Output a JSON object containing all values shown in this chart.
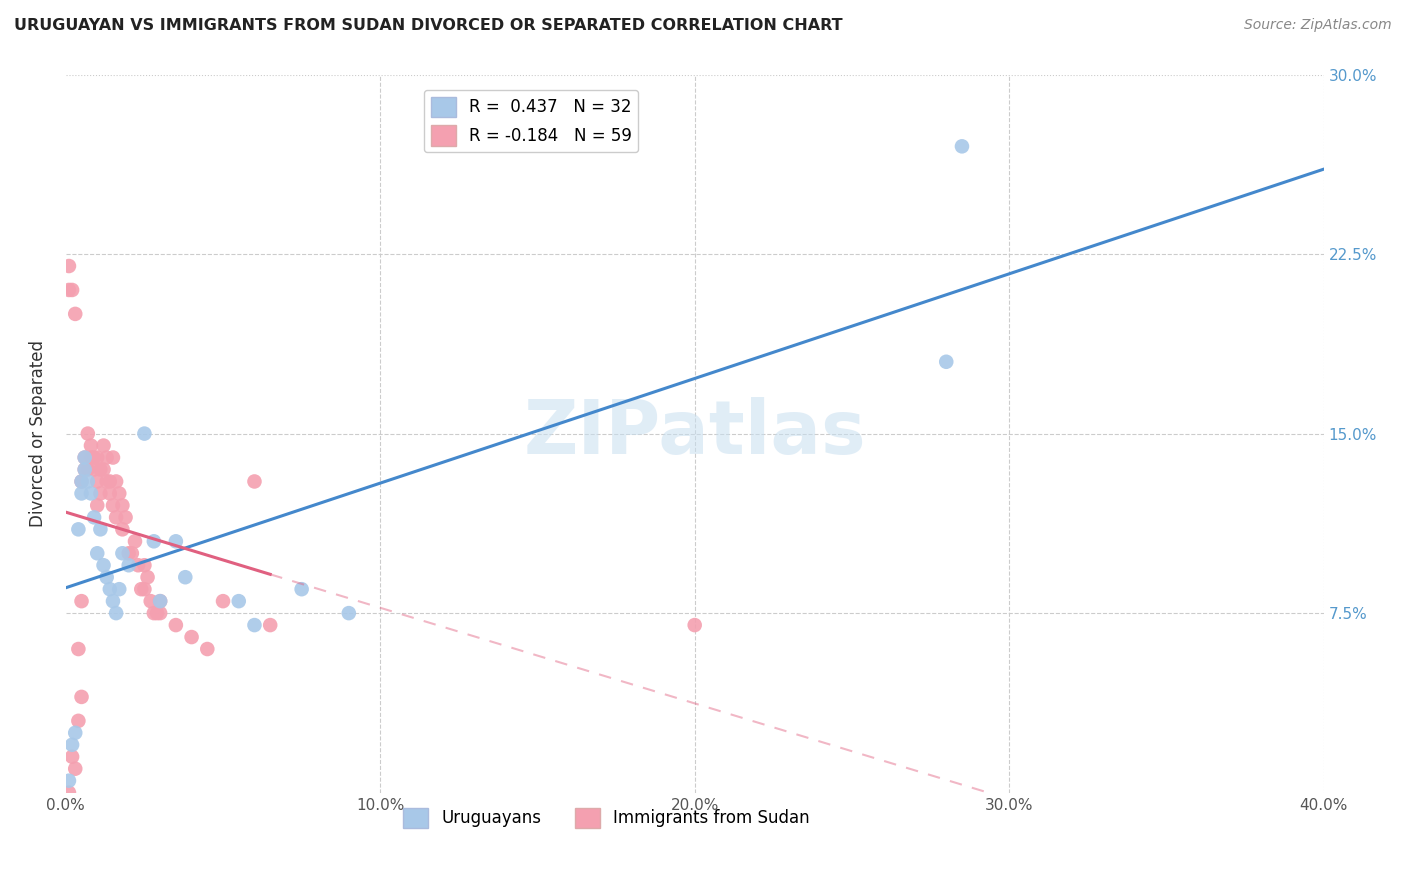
{
  "title": "URUGUAYAN VS IMMIGRANTS FROM SUDAN DIVORCED OR SEPARATED CORRELATION CHART",
  "source": "Source: ZipAtlas.com",
  "ylabel": "Divorced or Separated",
  "xlim": [
    0.0,
    0.4
  ],
  "ylim": [
    0.0,
    0.3
  ],
  "legend1_label": "R =  0.437   N = 32",
  "legend2_label": "R = -0.184   N = 59",
  "uruguayan_color": "#a8c8e8",
  "sudan_color": "#f4a0b0",
  "uruguayan_line_color": "#4488cc",
  "sudan_line_color": "#e06080",
  "watermark": "ZIPatlas",
  "uruguayan_x": [
    0.001,
    0.002,
    0.003,
    0.004,
    0.005,
    0.005,
    0.006,
    0.006,
    0.007,
    0.008,
    0.009,
    0.01,
    0.011,
    0.012,
    0.013,
    0.014,
    0.015,
    0.016,
    0.017,
    0.018,
    0.02,
    0.025,
    0.028,
    0.03,
    0.035,
    0.038,
    0.055,
    0.06,
    0.075,
    0.09,
    0.28,
    0.285
  ],
  "uruguayan_y": [
    0.005,
    0.02,
    0.025,
    0.11,
    0.125,
    0.13,
    0.135,
    0.14,
    0.13,
    0.125,
    0.115,
    0.1,
    0.11,
    0.095,
    0.09,
    0.085,
    0.08,
    0.075,
    0.085,
    0.1,
    0.095,
    0.15,
    0.105,
    0.08,
    0.105,
    0.09,
    0.08,
    0.07,
    0.085,
    0.075,
    0.18,
    0.27
  ],
  "sudan_x": [
    0.001,
    0.001,
    0.001,
    0.002,
    0.002,
    0.003,
    0.003,
    0.004,
    0.004,
    0.005,
    0.005,
    0.005,
    0.006,
    0.006,
    0.007,
    0.007,
    0.008,
    0.008,
    0.009,
    0.009,
    0.01,
    0.01,
    0.01,
    0.011,
    0.011,
    0.012,
    0.012,
    0.013,
    0.013,
    0.014,
    0.014,
    0.015,
    0.015,
    0.016,
    0.016,
    0.017,
    0.018,
    0.018,
    0.019,
    0.02,
    0.021,
    0.022,
    0.023,
    0.024,
    0.025,
    0.025,
    0.026,
    0.027,
    0.028,
    0.029,
    0.03,
    0.03,
    0.035,
    0.04,
    0.045,
    0.05,
    0.06,
    0.065,
    0.2
  ],
  "sudan_y": [
    0.21,
    0.22,
    0.0,
    0.21,
    0.015,
    0.2,
    0.01,
    0.03,
    0.06,
    0.04,
    0.08,
    0.13,
    0.135,
    0.14,
    0.135,
    0.15,
    0.14,
    0.145,
    0.135,
    0.14,
    0.12,
    0.13,
    0.14,
    0.125,
    0.135,
    0.135,
    0.145,
    0.13,
    0.14,
    0.125,
    0.13,
    0.12,
    0.14,
    0.115,
    0.13,
    0.125,
    0.11,
    0.12,
    0.115,
    0.1,
    0.1,
    0.105,
    0.095,
    0.085,
    0.085,
    0.095,
    0.09,
    0.08,
    0.075,
    0.075,
    0.075,
    0.08,
    0.07,
    0.065,
    0.06,
    0.08,
    0.13,
    0.07,
    0.07
  ]
}
